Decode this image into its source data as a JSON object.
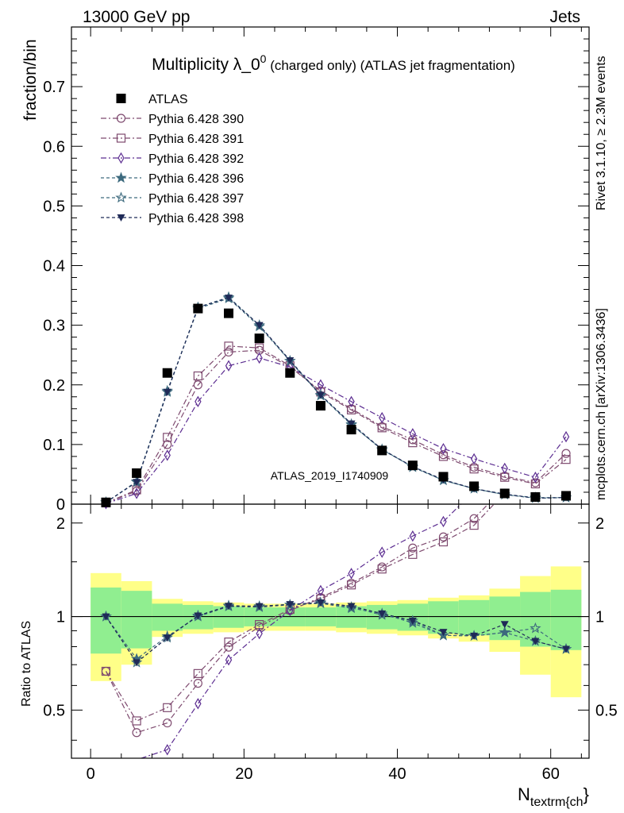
{
  "header": {
    "left": "13000 GeV pp",
    "right": "Jets"
  },
  "side_labels": {
    "top": "Rivet 3.1.10, ≥ 2.3M events",
    "bottom": "mcplots.cern.ch [arXiv:1306.3436]"
  },
  "watermark": "ATLAS_2019_I1740909",
  "chart_data": {
    "type": "scatter",
    "title_main": "Multiplicity λ_0",
    "title_sup": "0",
    "title_rest": " (charged only) (ATLAS jet fragmentation)",
    "xlabel_main": "N",
    "xlabel_sub": "textrm{ch",
    "xlabel_close": "}",
    "ylabel": "fraction/bin",
    "ratio_ylabel": "Ratio to ATLAS",
    "xlim": [
      -2.5,
      65
    ],
    "ylim": [
      0,
      0.8
    ],
    "ratio_ylim": [
      0.35,
      2.3
    ],
    "x_ticks": [
      0,
      20,
      40,
      60
    ],
    "x_tick_labels": [
      "0",
      "20",
      "40",
      "60"
    ],
    "y_ticks": [
      0,
      0.1,
      0.2,
      0.3,
      0.4,
      0.5,
      0.6,
      0.7
    ],
    "y_tick_labels": [
      "0",
      "0.1",
      "0.2",
      "0.3",
      "0.4",
      "0.5",
      "0.6",
      "0.7"
    ],
    "ratio_ticks": [
      0.5,
      1,
      2
    ],
    "ratio_tick_labels": [
      "0.5",
      "1",
      "2"
    ],
    "bin_edges": [
      0,
      4,
      8,
      12,
      16,
      20,
      24,
      28,
      32,
      36,
      40,
      44,
      48,
      52,
      56,
      60,
      64
    ],
    "x": [
      2,
      6,
      10,
      14,
      18,
      22,
      26,
      30,
      34,
      38,
      42,
      46,
      50,
      54,
      58,
      62
    ],
    "data": {
      "name": "ATLAS",
      "values": [
        0.003,
        0.052,
        0.22,
        0.328,
        0.32,
        0.278,
        0.22,
        0.165,
        0.125,
        0.09,
        0.065,
        0.046,
        0.03,
        0.018,
        0.012,
        0.014
      ],
      "band_inner": [
        0.24,
        0.21,
        0.1,
        0.09,
        0.08,
        0.07,
        0.07,
        0.07,
        0.08,
        0.09,
        0.1,
        0.12,
        0.13,
        0.16,
        0.2,
        0.22
      ],
      "band_outer": [
        0.38,
        0.3,
        0.14,
        0.12,
        0.11,
        0.1,
        0.1,
        0.1,
        0.11,
        0.12,
        0.13,
        0.15,
        0.17,
        0.23,
        0.35,
        0.45
      ]
    },
    "series": [
      {
        "name": "Pythia 6.428 390",
        "color": "#7e4a6f",
        "marker": "circle",
        "dash": "7,3,2,3",
        "values": [
          0.002,
          0.022,
          0.1,
          0.2,
          0.255,
          0.258,
          0.23,
          0.19,
          0.16,
          0.13,
          0.108,
          0.083,
          0.062,
          0.047,
          0.036,
          0.085
        ]
      },
      {
        "name": "Pythia 6.428 391",
        "color": "#7e4a6f",
        "marker": "square",
        "dash": "7,3,2,3",
        "values": [
          0.002,
          0.024,
          0.112,
          0.215,
          0.265,
          0.262,
          0.232,
          0.188,
          0.158,
          0.128,
          0.103,
          0.08,
          0.059,
          0.045,
          0.034,
          0.075
        ]
      },
      {
        "name": "Pythia 6.428 392",
        "color": "#5c2d91",
        "marker": "diamond",
        "dash": "7,3,2,3",
        "values": [
          0.001,
          0.018,
          0.082,
          0.172,
          0.232,
          0.245,
          0.23,
          0.2,
          0.172,
          0.145,
          0.118,
          0.093,
          0.076,
          0.06,
          0.045,
          0.113
        ]
      },
      {
        "name": "Pythia 6.428 396",
        "color": "#3d6a7e",
        "marker": "star-filled",
        "dash": "4,3",
        "values": [
          0.003,
          0.038,
          0.19,
          0.328,
          0.345,
          0.298,
          0.24,
          0.182,
          0.133,
          0.092,
          0.062,
          0.04,
          0.026,
          0.016,
          0.01,
          0.011
        ]
      },
      {
        "name": "Pythia 6.428 397",
        "color": "#3d6a7e",
        "marker": "star-open",
        "dash": "4,3",
        "values": [
          0.003,
          0.037,
          0.188,
          0.33,
          0.347,
          0.3,
          0.24,
          0.183,
          0.134,
          0.091,
          0.063,
          0.04,
          0.026,
          0.016,
          0.011,
          0.011
        ]
      },
      {
        "name": "Pythia 6.428 398",
        "color": "#1f2a57",
        "marker": "triangle-down",
        "dash": "4,3",
        "values": [
          0.003,
          0.037,
          0.188,
          0.33,
          0.346,
          0.3,
          0.241,
          0.183,
          0.135,
          0.092,
          0.063,
          0.041,
          0.026,
          0.017,
          0.01,
          0.011
        ]
      }
    ]
  },
  "colors": {
    "band_inner": "#90ee90",
    "band_outer": "#ffff88",
    "data": "#000000"
  }
}
